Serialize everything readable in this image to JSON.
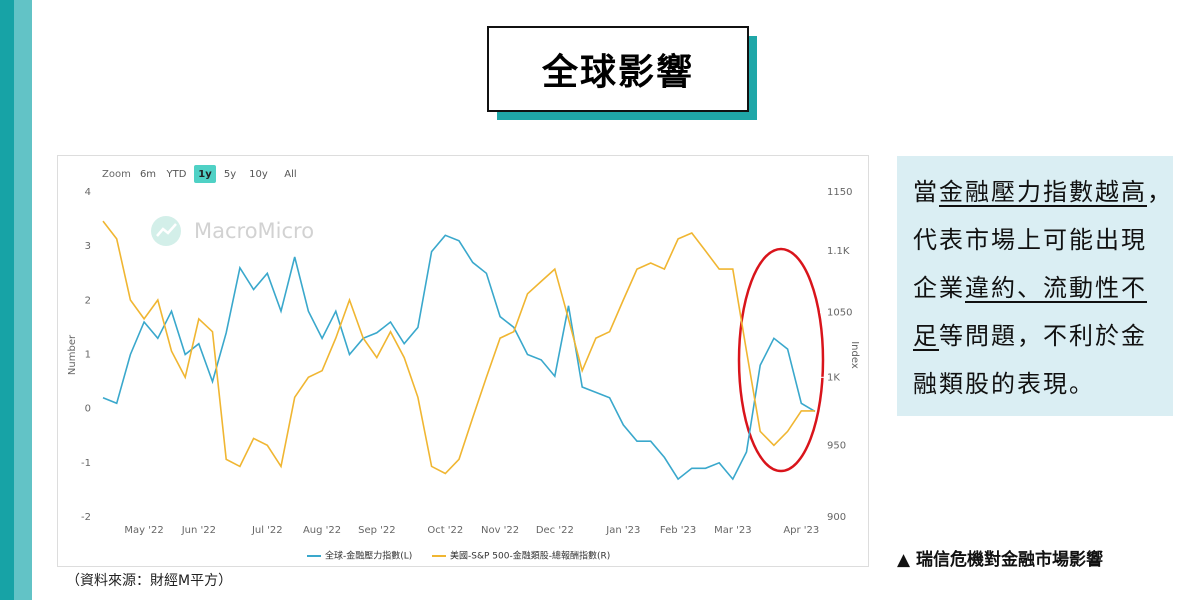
{
  "header": {
    "title": "全球影響"
  },
  "chart_data": {
    "type": "line",
    "zoom": {
      "label": "Zoom",
      "options": [
        "6m",
        "YTD",
        "1y",
        "5y",
        "10y",
        "All"
      ],
      "active": 2
    },
    "watermark": "MacroMicro",
    "ylabel": "Number",
    "y2label": "Index",
    "categories": [
      null,
      null,
      null,
      "May '22",
      null,
      null,
      null,
      "Jun '22",
      null,
      null,
      null,
      null,
      "Jul '22",
      null,
      null,
      null,
      "Aug '22",
      null,
      null,
      null,
      "Sep '22",
      null,
      null,
      null,
      null,
      "Oct '22",
      null,
      null,
      null,
      "Nov '22",
      null,
      null,
      null,
      "Dec '22",
      null,
      null,
      null,
      null,
      "Jan '23",
      null,
      null,
      null,
      "Feb '23",
      null,
      null,
      null,
      "Mar '23",
      null,
      null,
      null,
      null,
      "Apr '23",
      null
    ],
    "ylim": [
      -2,
      4
    ],
    "yticks": [
      -2,
      -1,
      0,
      1,
      2,
      3,
      4
    ],
    "y2lim": [
      900,
      1150
    ],
    "y2log": true,
    "y2ticks": [
      900,
      950,
      {
        "value": 1000,
        "label": "1K"
      },
      1050,
      {
        "value": 1100,
        "label": "1.1K"
      },
      1150
    ],
    "series": [
      {
        "name": "全球-金融壓力指數(L)",
        "color": "#3aa8cc",
        "values": [
          0.2,
          0.1,
          1.0,
          1.6,
          1.3,
          1.8,
          1.0,
          1.2,
          0.5,
          1.4,
          2.6,
          2.2,
          2.5,
          1.8,
          2.8,
          1.8,
          1.3,
          1.8,
          1.0,
          1.3,
          1.4,
          1.6,
          1.2,
          1.5,
          2.9,
          3.2,
          3.1,
          2.7,
          2.5,
          1.7,
          1.5,
          1.0,
          0.9,
          0.6,
          1.9,
          0.4,
          0.3,
          0.2,
          -0.3,
          -0.6,
          -0.6,
          -0.9,
          -1.3,
          -1.1,
          -1.1,
          -1.0,
          -1.3,
          -0.8,
          0.8,
          1.3,
          1.1,
          0.1,
          -0.05
        ]
      },
      {
        "name": "美國-S&P 500-金融類股-總報酬指數(R)",
        "color": "#f0b632",
        "axis": "y2",
        "values": [
          1125,
          1110,
          1060,
          1045,
          1060,
          1020,
          1000,
          1045,
          1035,
          940,
          935,
          955,
          950,
          935,
          985,
          1000,
          1005,
          1030,
          1060,
          1030,
          1015,
          1035,
          1015,
          985,
          935,
          930,
          940,
          970,
          1000,
          1030,
          1035,
          1065,
          1075,
          1085,
          1045,
          1005,
          1030,
          1035,
          1060,
          1085,
          1090,
          1085,
          1110,
          1115,
          1100,
          1085,
          1085,
          1020,
          960,
          950,
          960,
          975,
          975
        ]
      }
    ]
  },
  "note_lines": [
    [
      {
        "text": "當",
        "underline": false
      },
      {
        "text": "金融壓力指數越高",
        "underline": true
      },
      {
        "text": "，",
        "underline": false
      }
    ],
    [
      {
        "text": "代表市場上可能出現",
        "underline": false
      }
    ],
    [
      {
        "text": "企業",
        "underline": false
      },
      {
        "text": "違約、流動性不",
        "underline": true
      }
    ],
    [
      {
        "text": "足",
        "underline": true
      },
      {
        "text": "等問題，不利於金",
        "underline": false
      }
    ],
    [
      {
        "text": "融類股的表現。",
        "underline": false
      }
    ]
  ],
  "caption": "▲ 瑞信危機對金融市場影響",
  "source": "（資料來源：財經M平方）"
}
